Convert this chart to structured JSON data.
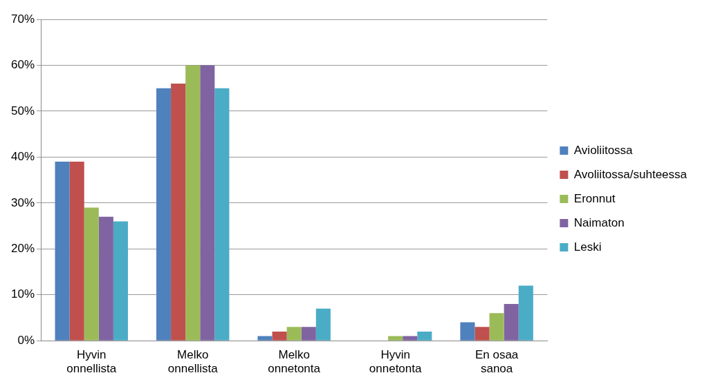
{
  "chart_data": {
    "type": "bar",
    "categories": [
      "Hyvin onnellista",
      "Melko onnellista",
      "Melko onnetonta",
      "Hyvin onnetonta",
      "En osaa sanoa"
    ],
    "series": [
      {
        "name": "Avioliitossa",
        "color": "#4f81bd",
        "values": [
          39,
          55,
          1,
          0,
          4
        ]
      },
      {
        "name": "Avoliitossa/suhteessa",
        "color": "#c0504d",
        "values": [
          39,
          56,
          2,
          0,
          3
        ]
      },
      {
        "name": "Eronnut",
        "color": "#9bbb59",
        "values": [
          29,
          60,
          3,
          1,
          6
        ]
      },
      {
        "name": "Naimaton",
        "color": "#8064a2",
        "values": [
          27,
          60,
          3,
          1,
          8
        ]
      },
      {
        "name": "Leski",
        "color": "#4bacc6",
        "values": [
          26,
          55,
          7,
          2,
          12
        ]
      }
    ],
    "ylim": [
      0,
      70
    ],
    "yticks": [
      {
        "value": 0,
        "label": "0%"
      },
      {
        "value": 10,
        "label": "10%"
      },
      {
        "value": 20,
        "label": "20%"
      },
      {
        "value": 30,
        "label": "30%"
      },
      {
        "value": 40,
        "label": "40%"
      },
      {
        "value": 50,
        "label": "50%"
      },
      {
        "value": 60,
        "label": "60%"
      },
      {
        "value": 70,
        "label": "70%"
      }
    ],
    "grid": "y",
    "legend": "right"
  }
}
